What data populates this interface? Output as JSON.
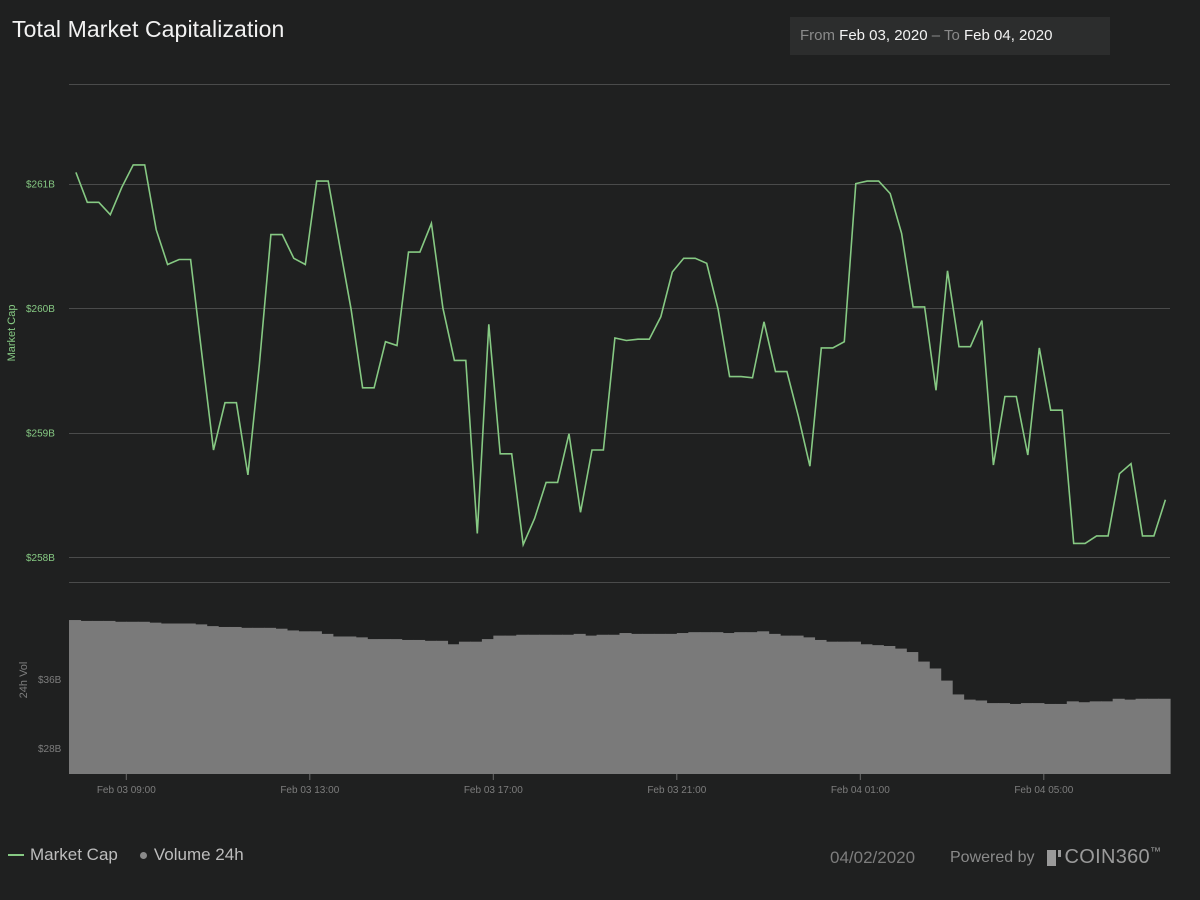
{
  "header": {
    "title": "Total Market Capitalization",
    "range_from_label": "From",
    "range_from_value": "Feb 03, 2020",
    "range_sep": "–",
    "range_to_label": "To",
    "range_to_value": "Feb 04, 2020"
  },
  "footer": {
    "legend_market_cap": "Market Cap",
    "legend_volume": "Volume 24h",
    "date": "04/02/2020",
    "powered_by": "Powered by",
    "brand": "COIN360",
    "brand_tm": "™"
  },
  "colors": {
    "background": "#1f2020",
    "line": "#86c983",
    "volume": "#7a7a7a",
    "grid": "#4a4b4b",
    "axis_text": "#8a8a8a"
  },
  "chart_data": {
    "type": "line",
    "title": "Total Market Capitalization",
    "x_ticks": [
      "Feb 03 09:00",
      "Feb 03 13:00",
      "Feb 03 17:00",
      "Feb 03 21:00",
      "Feb 04 01:00",
      "Feb 04 05:00"
    ],
    "x_tick_hours": [
      1.25,
      5.25,
      9.25,
      13.25,
      17.25,
      21.25
    ],
    "x_range_hours": [
      0,
      24
    ],
    "market_cap": {
      "name": "Market Cap",
      "ylabel": "Market Cap",
      "unit": "B USD",
      "ylim": [
        257.8,
        261.8
      ],
      "y_ticks": [
        258,
        259,
        260,
        261
      ],
      "y_tick_labels": [
        "$258B",
        "$259B",
        "$260B",
        "$261B"
      ],
      "hours": [
        0.15,
        0.4,
        0.65,
        0.9,
        1.15,
        1.4,
        1.65,
        1.9,
        2.15,
        2.4,
        2.65,
        2.9,
        3.15,
        3.4,
        3.65,
        3.9,
        4.15,
        4.4,
        4.65,
        4.9,
        5.15,
        5.4,
        5.65,
        5.9,
        6.15,
        6.4,
        6.65,
        6.9,
        7.15,
        7.4,
        7.65,
        7.9,
        8.15,
        8.4,
        8.65,
        8.9,
        9.15,
        9.4,
        9.65,
        9.9,
        10.15,
        10.4,
        10.65,
        10.9,
        11.15,
        11.4,
        11.65,
        11.9,
        12.15,
        12.4,
        12.65,
        12.9,
        13.15,
        13.4,
        13.65,
        13.9,
        14.15,
        14.4,
        14.65,
        14.9,
        15.15,
        15.4,
        15.65,
        15.9,
        16.15,
        16.4,
        16.65,
        16.9,
        17.15,
        17.4,
        17.65,
        17.9,
        18.15,
        18.4,
        18.65,
        18.9,
        19.15,
        19.4,
        19.65,
        19.9,
        20.15,
        20.4,
        20.65,
        20.9,
        21.15,
        21.4,
        21.65,
        21.9,
        22.15,
        22.4,
        22.65,
        22.9,
        23.15,
        23.4,
        23.65,
        23.9
      ],
      "values": [
        261.09,
        260.85,
        260.85,
        260.75,
        260.97,
        261.15,
        261.15,
        260.63,
        260.35,
        260.39,
        260.39,
        259.62,
        258.86,
        259.24,
        259.24,
        258.66,
        259.55,
        260.59,
        260.59,
        260.4,
        260.35,
        261.02,
        261.02,
        260.5,
        259.99,
        259.36,
        259.36,
        259.73,
        259.7,
        260.45,
        260.45,
        260.68,
        260.0,
        259.58,
        259.58,
        258.19,
        259.87,
        258.83,
        258.83,
        258.1,
        258.31,
        258.6,
        258.6,
        258.99,
        258.36,
        258.86,
        258.86,
        259.76,
        259.74,
        259.75,
        259.75,
        259.93,
        260.29,
        260.4,
        260.4,
        260.36,
        259.99,
        259.45,
        259.45,
        259.44,
        259.89,
        259.49,
        259.49,
        259.13,
        258.73,
        259.68,
        259.68,
        259.73,
        261.0,
        261.02,
        261.02,
        260.92,
        260.6,
        260.01,
        260.01,
        259.34,
        260.3,
        259.69,
        259.69,
        259.9,
        258.74,
        259.29,
        259.29,
        258.82,
        259.68,
        259.18,
        259.18,
        258.11,
        258.11,
        258.17,
        258.17,
        258.67,
        258.75,
        258.17,
        258.17,
        258.46
      ]
    },
    "volume": {
      "name": "Volume 24h",
      "ylabel": "24h Vol",
      "unit": "B USD",
      "ylim": [
        25.0,
        47.2
      ],
      "y_ticks": [
        28,
        36
      ],
      "y_tick_labels": [
        "$28B",
        "$36B"
      ],
      "values": [
        42.8,
        42.7,
        42.7,
        42.7,
        42.6,
        42.6,
        42.6,
        42.5,
        42.4,
        42.4,
        42.4,
        42.3,
        42.1,
        42.0,
        42.0,
        41.9,
        41.9,
        41.9,
        41.8,
        41.6,
        41.5,
        41.5,
        41.2,
        40.9,
        40.9,
        40.8,
        40.6,
        40.6,
        40.6,
        40.5,
        40.5,
        40.4,
        40.4,
        40.0,
        40.3,
        40.3,
        40.6,
        41.0,
        41.0,
        41.1,
        41.1,
        41.1,
        41.1,
        41.1,
        41.2,
        41.0,
        41.1,
        41.1,
        41.3,
        41.2,
        41.2,
        41.2,
        41.2,
        41.3,
        41.4,
        41.4,
        41.4,
        41.3,
        41.4,
        41.4,
        41.5,
        41.2,
        41.0,
        41.0,
        40.8,
        40.5,
        40.3,
        40.3,
        40.3,
        40.0,
        39.9,
        39.8,
        39.5,
        39.1,
        38.0,
        37.2,
        35.8,
        34.2,
        33.6,
        33.5,
        33.2,
        33.2,
        33.1,
        33.2,
        33.2,
        33.1,
        33.1,
        33.4,
        33.3,
        33.4,
        33.4,
        33.7,
        33.6,
        33.7,
        33.7,
        33.7
      ]
    }
  }
}
